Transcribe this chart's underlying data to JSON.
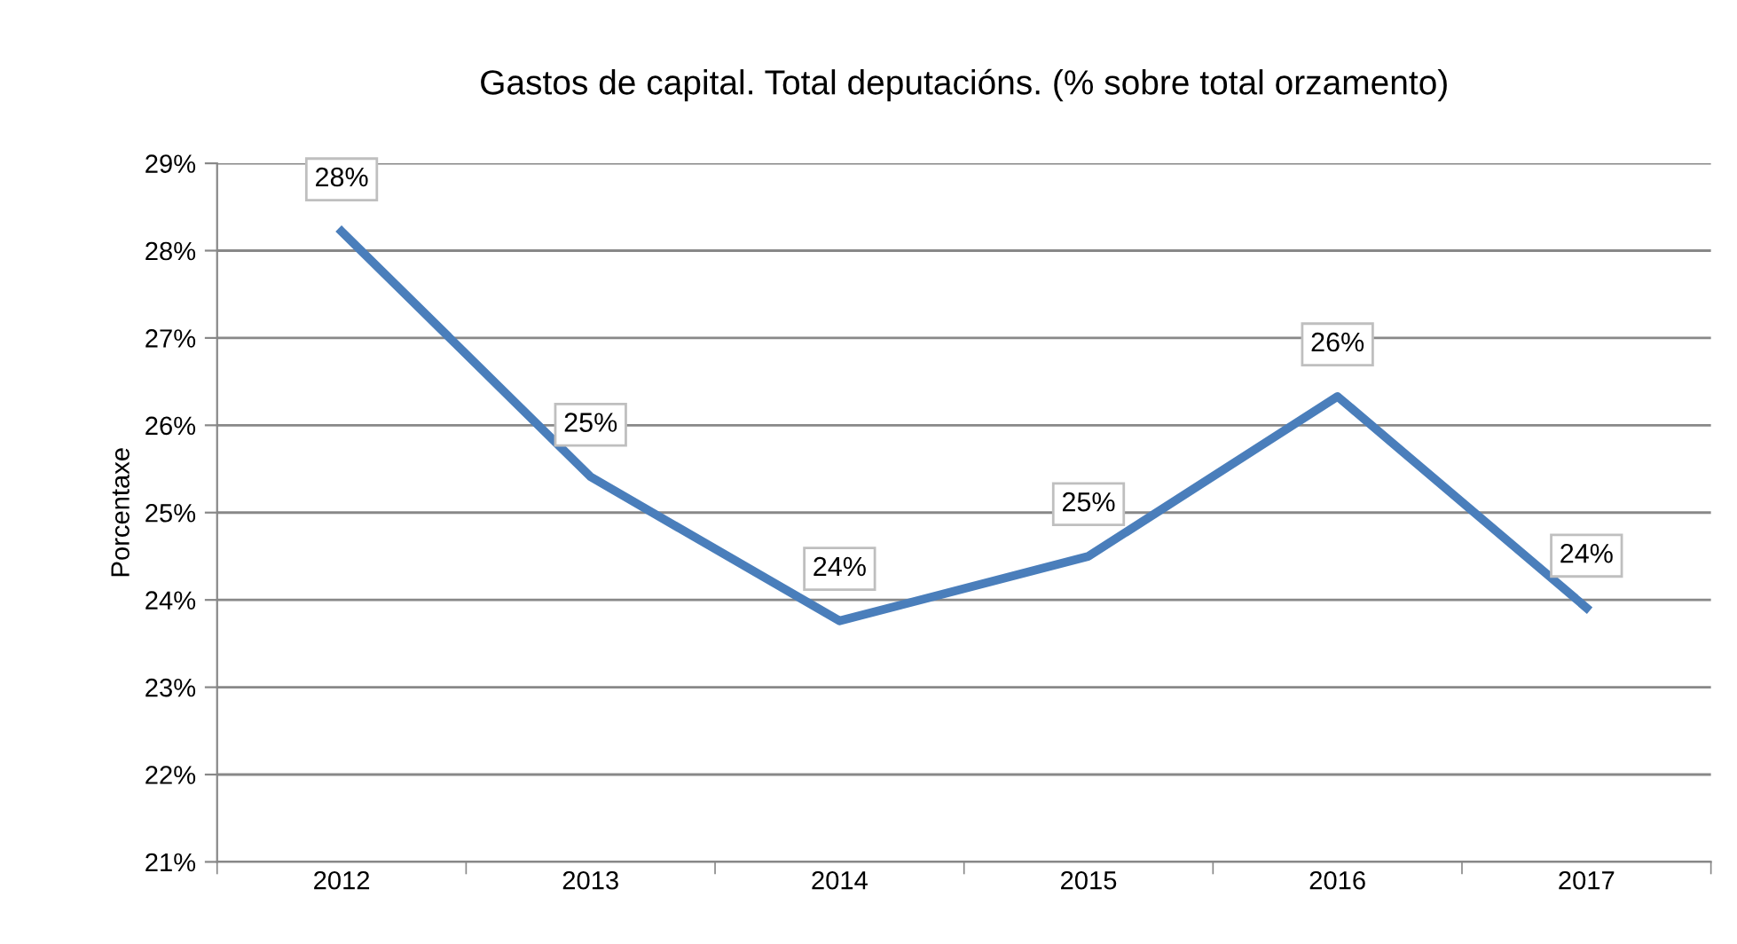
{
  "chart_data": {
    "type": "line",
    "title": "Gastos de capital. Total deputacións. (% sobre total orzamento)",
    "ylabel": "Porcentaxe",
    "categories": [
      "2012",
      "2013",
      "2014",
      "2015",
      "2016",
      "2017"
    ],
    "series": [
      {
        "color": "#4a7ebb",
        "values": [
          28.22,
          25.41,
          23.76,
          24.5,
          26.33,
          23.91
        ],
        "value_labels": [
          "28%",
          "25%",
          "24%",
          "25%",
          "26%",
          "24%"
        ]
      }
    ],
    "ylim": [
      21,
      29
    ],
    "yticks": [
      {
        "value": 21,
        "label": "21%"
      },
      {
        "value": 22,
        "label": "22%"
      },
      {
        "value": 23,
        "label": "23%"
      },
      {
        "value": 24,
        "label": "24%"
      },
      {
        "value": 25,
        "label": "25%"
      },
      {
        "value": 26,
        "label": "26%"
      },
      {
        "value": 27,
        "label": "27%"
      },
      {
        "value": 28,
        "label": "28%"
      },
      {
        "value": 29,
        "label": "29%"
      }
    ],
    "grid": "y",
    "legend": false,
    "marker": "none",
    "line_style": "solid"
  }
}
